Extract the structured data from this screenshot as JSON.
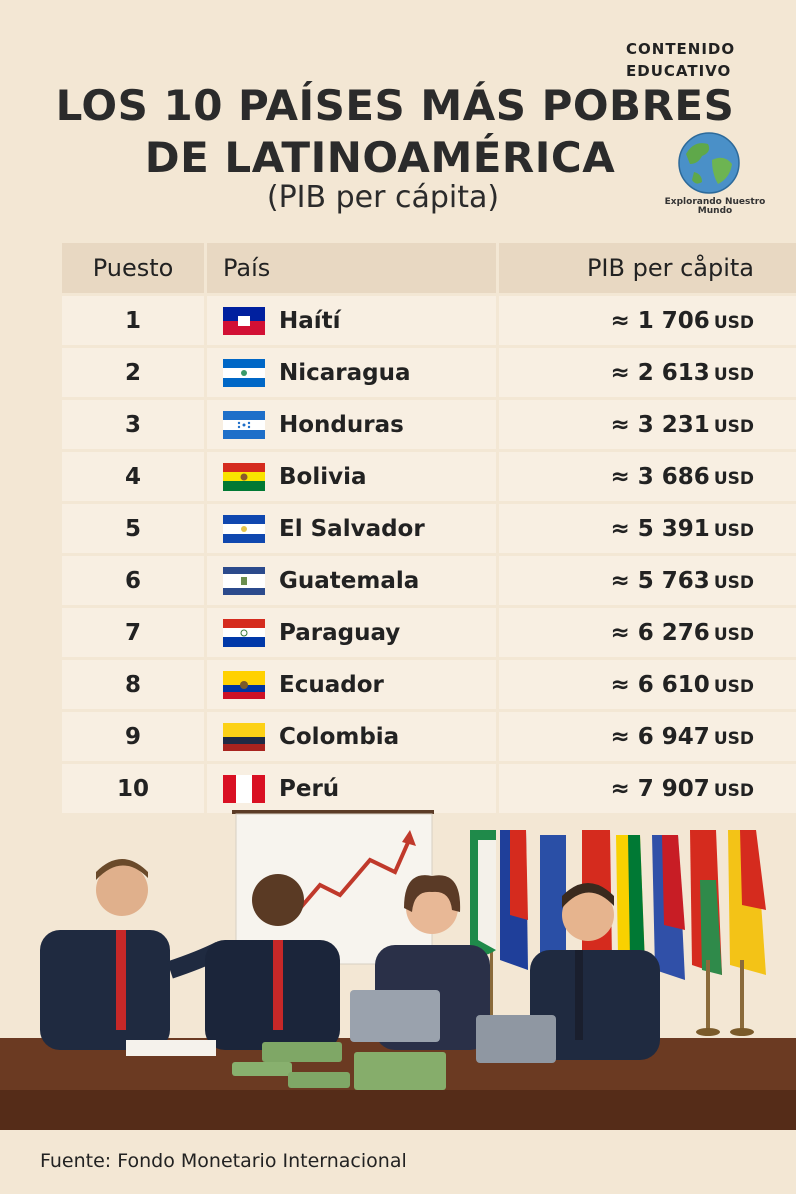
{
  "badge": {
    "line1": "CONTENIDO",
    "line2": "EDUCATIVO"
  },
  "title": {
    "line1": "LOS 10 PAÍSES MÁS POBRES",
    "line2": "DE LATINOAMÉRICA"
  },
  "subtitle": "(PIB per cápita)",
  "logo": {
    "text_line1": "Explorando Nuestro",
    "text_line2": "Mundo",
    "icon": "globe-icon"
  },
  "table": {
    "headers": {
      "rank": "Puesto",
      "country": "País",
      "gdp": "PIB per cåpita"
    },
    "rows": [
      {
        "rank": "1",
        "country": "Haítí",
        "value": "≈ 1 706",
        "unit": "USD",
        "flag": "haiti-flag"
      },
      {
        "rank": "2",
        "country": "Nicaragua",
        "value": "≈ 2 613",
        "unit": "USD",
        "flag": "nicaragua-flag"
      },
      {
        "rank": "3",
        "country": "Honduras",
        "value": "≈ 3 231",
        "unit": "USD",
        "flag": "honduras-flag"
      },
      {
        "rank": "4",
        "country": "Bolivia",
        "value": "≈ 3 686",
        "unit": "USD",
        "flag": "bolivia-flag"
      },
      {
        "rank": "5",
        "country": "El Salvador",
        "value": "≈ 5 391",
        "unit": "USD",
        "flag": "el-salvador-flag"
      },
      {
        "rank": "6",
        "country": "Guatemala",
        "value": "≈ 5 763",
        "unit": "USD",
        "flag": "guatemala-flag"
      },
      {
        "rank": "7",
        "country": "Paraguay",
        "value": "≈ 6 276",
        "unit": "USD",
        "flag": "paraguay-flag"
      },
      {
        "rank": "8",
        "country": "Ecuador",
        "value": "≈ 6 610",
        "unit": "USD",
        "flag": "ecuador-flag"
      },
      {
        "rank": "9",
        "country": "Colombia",
        "value": "≈ 6 947",
        "unit": "USD",
        "flag": "colombia-flag"
      },
      {
        "rank": "10",
        "country": "Perú",
        "value": "≈ 7 907",
        "unit": "USD",
        "flag": "peru-flag"
      }
    ]
  },
  "illustration": "business-meeting-illustration",
  "source": "Fuente: Fondo Monetario Internacional"
}
